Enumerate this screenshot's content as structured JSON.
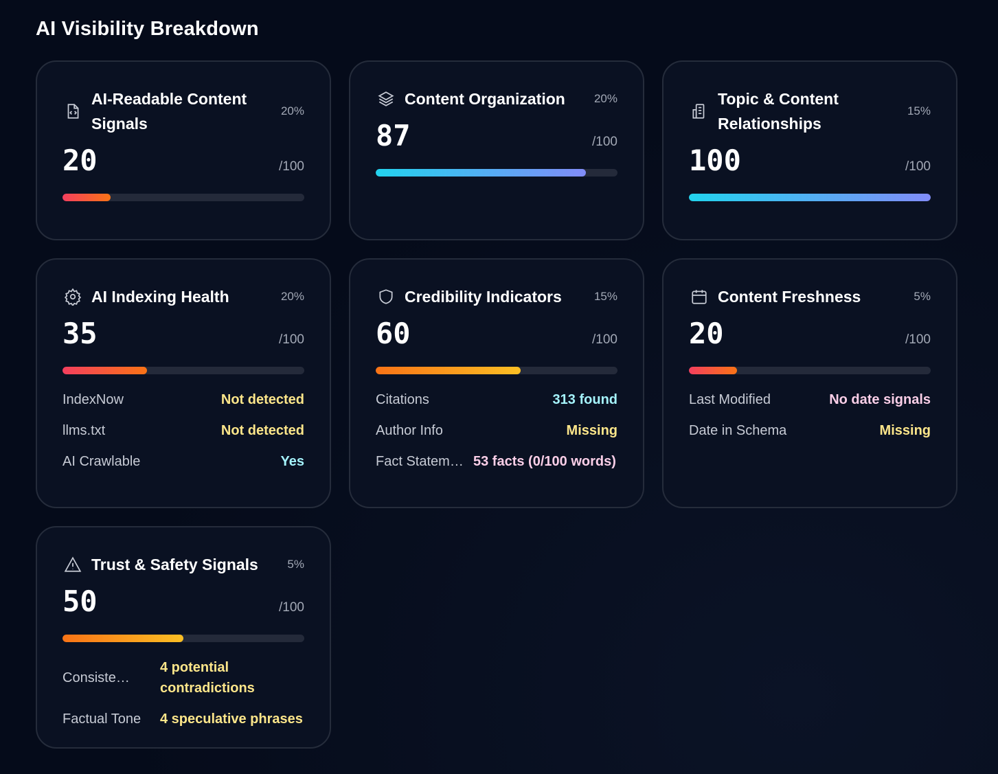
{
  "page_title": "AI Visibility Breakdown",
  "colors": {
    "background": "#050b1a",
    "card": "#0a1122",
    "yellow": "#fde68a",
    "cyan": "#a5f3fc",
    "pink": "#fbcfe8",
    "bar_low": [
      "#f43f5e",
      "#f97316"
    ],
    "bar_mid": [
      "#f97316",
      "#fbbf24"
    ],
    "bar_high": [
      "#22d3ee",
      "#818cf8"
    ]
  },
  "cards": [
    {
      "title": "AI-Readable Content Signals",
      "icon": "file-code-icon",
      "weight": "20%",
      "score": "20",
      "max": "/100",
      "progress": 20,
      "rows": []
    },
    {
      "title": "Content Organization",
      "icon": "layers-icon",
      "weight": "20%",
      "score": "87",
      "max": "/100",
      "progress": 87,
      "rows": []
    },
    {
      "title": "Topic & Content Relationships",
      "icon": "building-icon",
      "weight": "15%",
      "score": "100",
      "max": "/100",
      "progress": 100,
      "rows": []
    },
    {
      "title": "AI Indexing Health",
      "icon": "gear-icon",
      "weight": "20%",
      "score": "35",
      "max": "/100",
      "progress": 35,
      "rows": [
        {
          "label": "IndexNow",
          "value": "Not detected",
          "color": "yellow"
        },
        {
          "label": "llms.txt",
          "value": "Not detected",
          "color": "yellow"
        },
        {
          "label": "AI Crawlable",
          "value": "Yes",
          "color": "cyan"
        }
      ]
    },
    {
      "title": "Credibility Indicators",
      "icon": "shield-icon",
      "weight": "15%",
      "score": "60",
      "max": "/100",
      "progress": 60,
      "rows": [
        {
          "label": "Citations",
          "value": "313 found",
          "color": "cyan"
        },
        {
          "label": "Author Info",
          "value": "Missing",
          "color": "yellow"
        },
        {
          "label": "Fact Statem…",
          "value": "53 facts (0/100 words)",
          "color": "pink"
        }
      ]
    },
    {
      "title": "Content Freshness",
      "icon": "calendar-icon",
      "weight": "5%",
      "score": "20",
      "max": "/100",
      "progress": 20,
      "rows": [
        {
          "label": "Last Modified",
          "value": "No date signals",
          "color": "pink"
        },
        {
          "label": "Date in Schema",
          "value": "Missing",
          "color": "yellow"
        }
      ]
    },
    {
      "title": "Trust & Safety Signals",
      "icon": "warning-icon",
      "weight": "5%",
      "score": "50",
      "max": "/100",
      "progress": 50,
      "rows": [
        {
          "label": "Consiste…",
          "value": "4 potential contradictions",
          "color": "yellow"
        },
        {
          "label": "Factual Tone",
          "value": "4 speculative phrases",
          "color": "yellow"
        }
      ]
    }
  ]
}
